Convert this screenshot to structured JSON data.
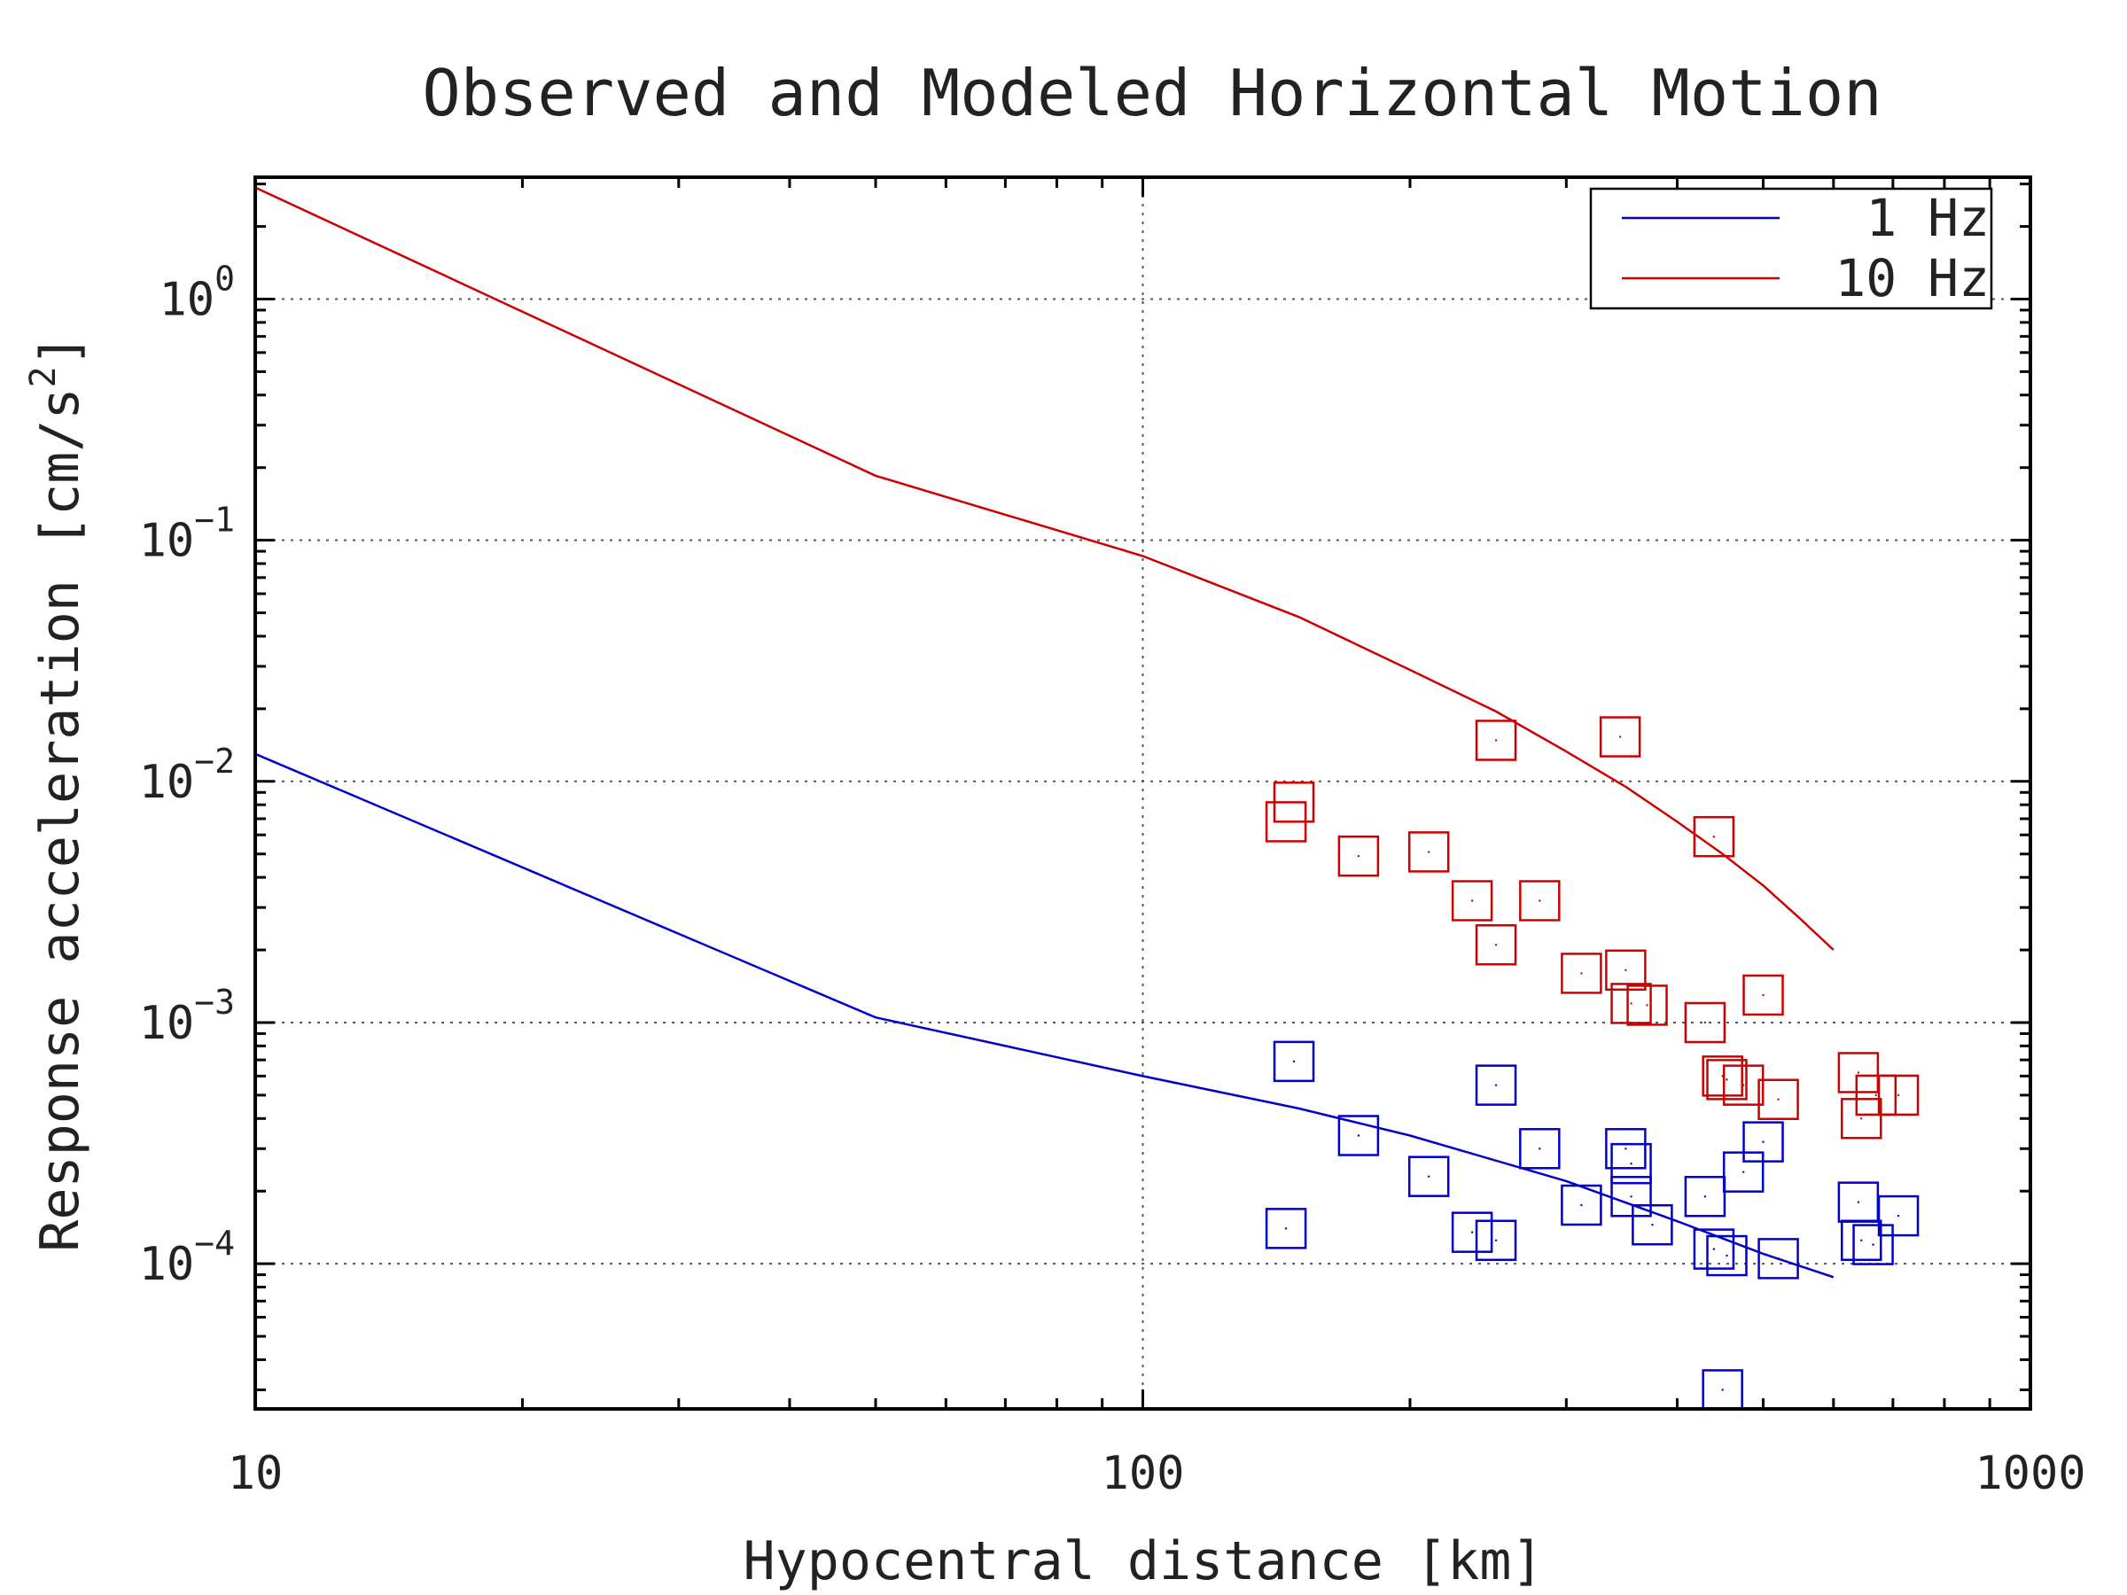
{
  "chart_data": {
    "type": "line",
    "title": "Observed and Modeled Horizontal Motion",
    "xlabel": "Hypocentral distance [km]",
    "ylabel": "Response acceleration [cm/s",
    "ylabel_superscript": "2",
    "ylabel_suffix": "]",
    "xscale": "log",
    "yscale": "log",
    "xlim": [
      10,
      1000
    ],
    "ylim": [
      2.5e-05,
      3.2
    ],
    "grid": true,
    "legend_position": "top-right",
    "x_ticks": [
      {
        "value": 10,
        "label": "10"
      },
      {
        "value": 100,
        "label": "100"
      },
      {
        "value": 1000,
        "label": "1000"
      }
    ],
    "y_ticks": [
      {
        "value": 1,
        "base": "10",
        "exp": "0"
      },
      {
        "value": 0.1,
        "base": "10",
        "exp": "−1"
      },
      {
        "value": 0.01,
        "base": "10",
        "exp": "−2"
      },
      {
        "value": 0.001,
        "base": "10",
        "exp": "−3"
      },
      {
        "value": 0.0001,
        "base": "10",
        "exp": "−4"
      }
    ],
    "series": [
      {
        "name": "1 Hz",
        "color": "#0000cc",
        "line_x": [
          10,
          50,
          100,
          150,
          200,
          300,
          400,
          500,
          600
        ],
        "line_y": [
          0.013,
          0.00105,
          0.0006,
          0.00044,
          0.00034,
          0.00022,
          0.00015,
          0.00011,
          8.8e-05
        ],
        "observed": [
          [
            145,
            0.00014
          ],
          [
            148,
            0.00069
          ],
          [
            175,
            0.00034
          ],
          [
            210,
            0.00023
          ],
          [
            235,
            0.000135
          ],
          [
            250,
            0.000125
          ],
          [
            250,
            0.00055
          ],
          [
            280,
            0.0003
          ],
          [
            312,
            0.000175
          ],
          [
            350,
            0.0003
          ],
          [
            355,
            0.00026
          ],
          [
            355,
            0.00019
          ],
          [
            375,
            0.000145
          ],
          [
            430,
            0.00019
          ],
          [
            440,
            0.000115
          ],
          [
            455,
            0.000108
          ],
          [
            475,
            0.00024
          ],
          [
            450,
            3e-05
          ],
          [
            500,
            0.00032
          ],
          [
            520,
            0.000105
          ],
          [
            640,
            0.00018
          ],
          [
            645,
            0.000125
          ],
          [
            665,
            0.00012
          ],
          [
            710,
            0.000158
          ]
        ]
      },
      {
        "name": "10 Hz",
        "color": "#cc0000",
        "line_x": [
          10,
          50,
          100,
          150,
          200,
          250,
          300,
          350,
          400,
          450,
          500,
          550,
          600
        ],
        "line_y": [
          2.9,
          0.185,
          0.086,
          0.048,
          0.029,
          0.0195,
          0.0133,
          0.0095,
          0.0068,
          0.005,
          0.0037,
          0.0027,
          0.002
        ],
        "observed": [
          [
            145,
            0.0068
          ],
          [
            148,
            0.0082
          ],
          [
            175,
            0.0049
          ],
          [
            210,
            0.0051
          ],
          [
            235,
            0.0032
          ],
          [
            250,
            0.0021
          ],
          [
            250,
            0.0148
          ],
          [
            280,
            0.0032
          ],
          [
            312,
            0.0016
          ],
          [
            345,
            0.0153
          ],
          [
            350,
            0.00165
          ],
          [
            355,
            0.0012
          ],
          [
            370,
            0.00118
          ],
          [
            430,
            0.001
          ],
          [
            440,
            0.0059
          ],
          [
            450,
            0.0006
          ],
          [
            455,
            0.00058
          ],
          [
            475,
            0.00055
          ],
          [
            500,
            0.0013
          ],
          [
            520,
            0.00048
          ],
          [
            640,
            0.00062
          ],
          [
            645,
            0.0004
          ],
          [
            670,
            0.0005
          ],
          [
            710,
            0.0005
          ]
        ]
      }
    ]
  }
}
